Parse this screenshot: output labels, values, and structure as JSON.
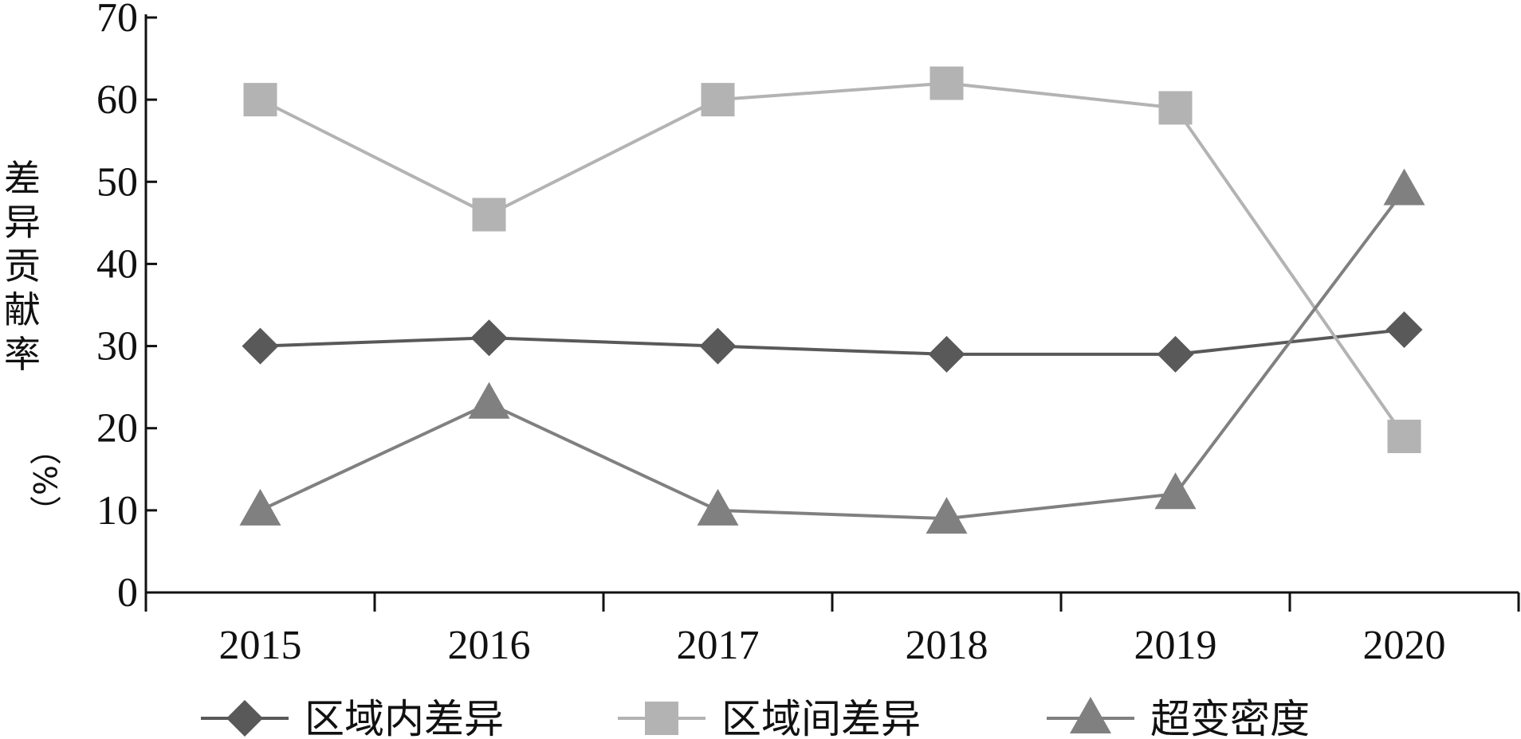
{
  "chart_data": {
    "type": "line",
    "title": "",
    "xlabel": "",
    "ylabel_chars": [
      "差",
      "异",
      "贡",
      "献",
      "率",
      "（%）"
    ],
    "categories": [
      "2015",
      "2016",
      "2017",
      "2018",
      "2019",
      "2020"
    ],
    "ylim": [
      0,
      70
    ],
    "yticks": [
      0,
      10,
      20,
      30,
      40,
      50,
      60,
      70
    ],
    "grid": false,
    "legend_position": "bottom",
    "series": [
      {
        "name": "区域内差异",
        "marker": "diamond",
        "color": "#595959",
        "values": [
          30,
          31,
          30,
          29,
          29,
          32
        ]
      },
      {
        "name": "区域间差异",
        "marker": "square",
        "color": "#b3b3b3",
        "values": [
          60,
          46,
          60,
          62,
          59,
          19
        ]
      },
      {
        "name": "超变密度",
        "marker": "triangle",
        "color": "#808080",
        "values": [
          10,
          23,
          10,
          9,
          12,
          49
        ]
      }
    ]
  }
}
